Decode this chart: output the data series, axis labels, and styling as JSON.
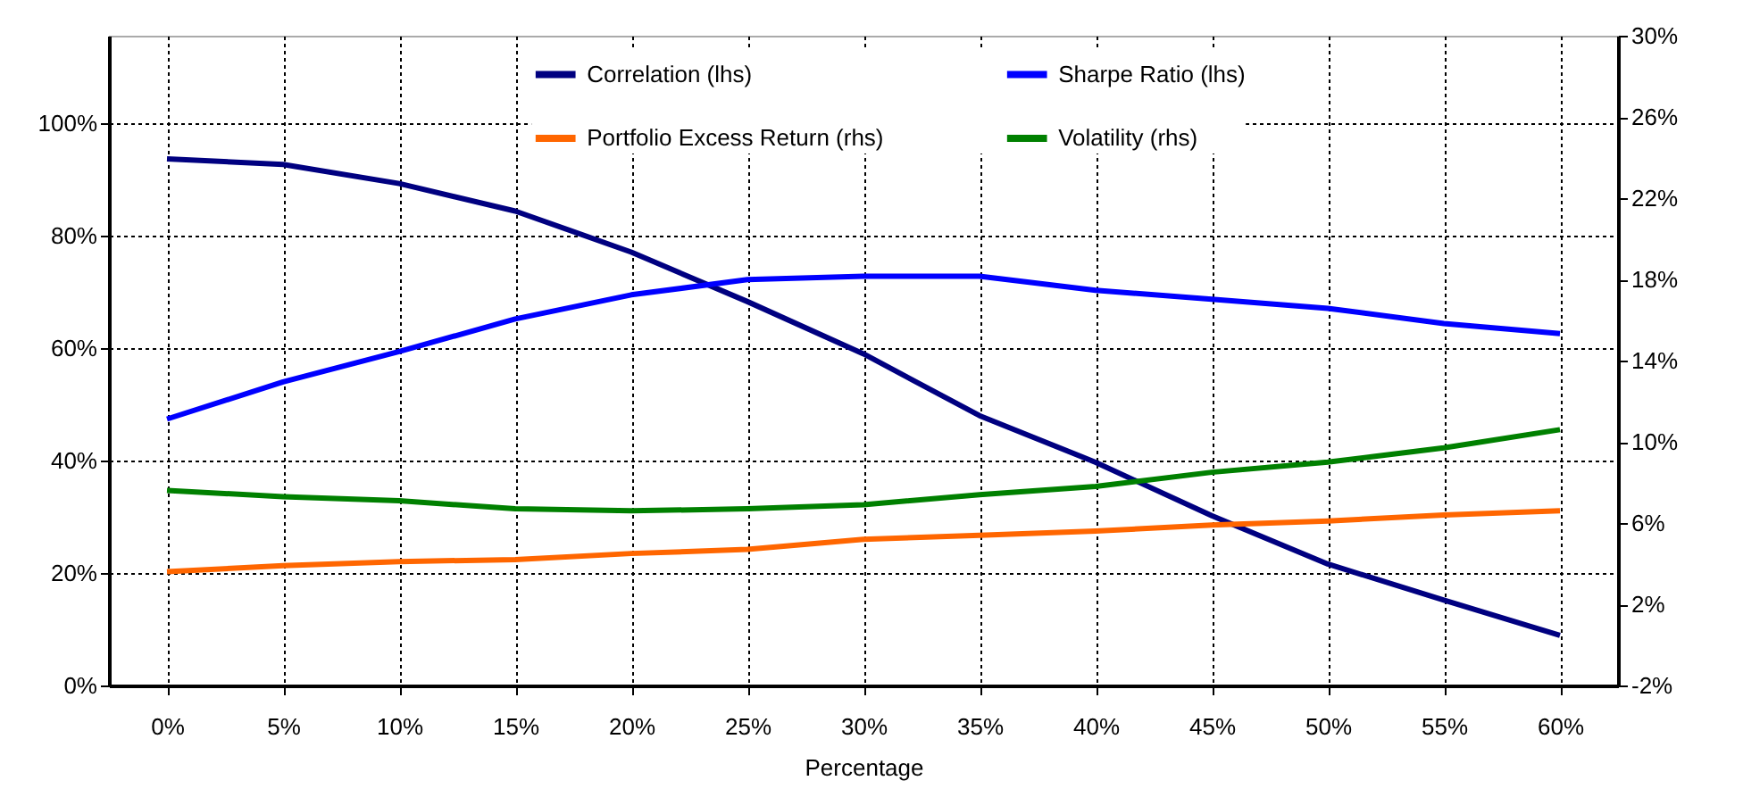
{
  "chart_data": {
    "type": "line",
    "xlabel": "Percentage",
    "categories": [
      "0%",
      "5%",
      "10%",
      "15%",
      "20%",
      "25%",
      "30%",
      "35%",
      "40%",
      "45%",
      "50%",
      "55%",
      "60%"
    ],
    "series": [
      {
        "name": "Correlation (lhs)",
        "color": "#000080",
        "values": [
          93.7,
          92.7,
          89.3,
          84.4,
          77.1,
          68.3,
          59,
          48,
          39.7,
          30.2,
          21.6,
          15.2,
          8.9
        ]
      },
      {
        "name": "Sharpe Ratio (lhs)",
        "color": "#0000ff",
        "values": [
          47.4,
          54,
          59.4,
          65.2,
          69.5,
          72.2,
          72.8,
          72.8,
          70.3,
          68.7,
          67.1,
          64.4,
          62.6
        ]
      },
      {
        "name": "Portfolio Excess Return (rhs)",
        "color": "#ff6600",
        "axis": "y2",
        "values": [
          3.6,
          3.9,
          4.1,
          4.2,
          4.5,
          4.7,
          5.2,
          5.4,
          5.6,
          5.9,
          6.1,
          6.4,
          6.6
        ]
      },
      {
        "name": "Volatility (rhs)",
        "color": "#008000",
        "axis": "y2",
        "values": [
          7.6,
          7.3,
          7.1,
          6.7,
          6.6,
          6.7,
          6.9,
          7.4,
          7.8,
          8.5,
          9,
          9.7,
          10.6
        ]
      }
    ],
    "ylim": [
      0,
      115.6
    ],
    "yticks": [
      {
        "value": 0,
        "label": "0%"
      },
      {
        "value": 20,
        "label": "20%"
      },
      {
        "value": 40,
        "label": "40%"
      },
      {
        "value": 60,
        "label": "60%"
      },
      {
        "value": 80,
        "label": "80%"
      },
      {
        "value": 100,
        "label": "100%"
      }
    ],
    "y2lim": [
      -2,
      30
    ],
    "y2ticks": [
      {
        "value": -2,
        "label": "-2%"
      },
      {
        "value": 2,
        "label": "2%"
      },
      {
        "value": 6,
        "label": "6%"
      },
      {
        "value": 10,
        "label": "10%"
      },
      {
        "value": 14,
        "label": "14%"
      },
      {
        "value": 18,
        "label": "18%"
      },
      {
        "value": 22,
        "label": "22%"
      },
      {
        "value": 26,
        "label": "26%"
      },
      {
        "value": 30,
        "label": "30%"
      }
    ],
    "grid": true,
    "legend": "top",
    "line_style": "solid",
    "marker": "none"
  }
}
